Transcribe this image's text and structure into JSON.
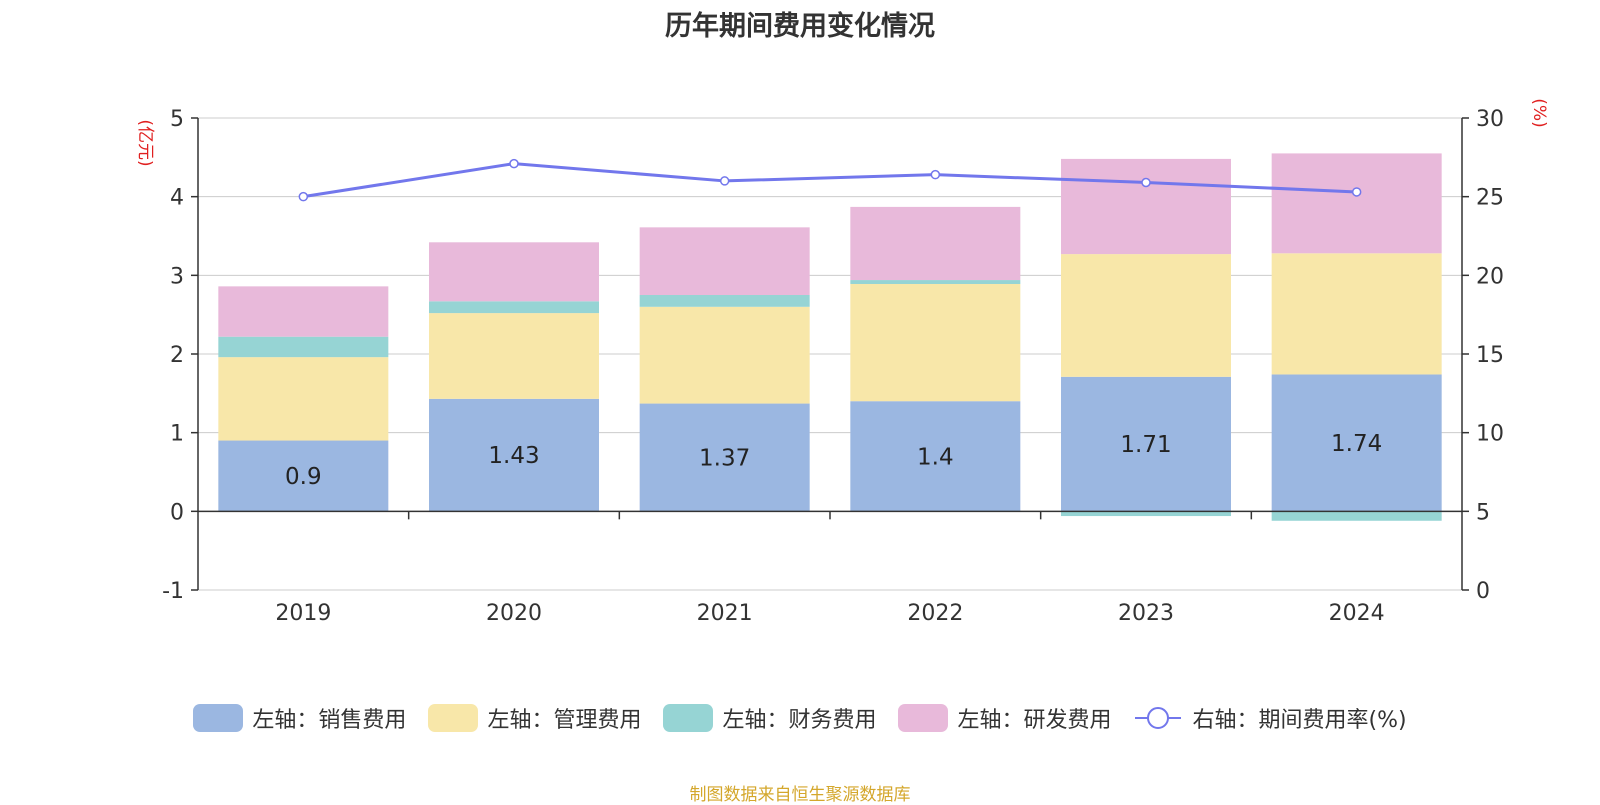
{
  "chart_data": {
    "type": "bar",
    "title": "历年期间费用变化情况",
    "categories": [
      "2019",
      "2020",
      "2021",
      "2022",
      "2023",
      "2024"
    ],
    "y_left": {
      "label": "(亿元)",
      "ylim": [
        -1,
        5
      ],
      "ticks": [
        -1,
        0,
        1,
        2,
        3,
        4,
        5
      ]
    },
    "y_right": {
      "label": "(%)",
      "ylim": [
        0,
        30
      ],
      "ticks": [
        0,
        5,
        10,
        15,
        20,
        25,
        30
      ]
    },
    "grid": true,
    "legend_position": "bottom",
    "series": [
      {
        "name": "左轴：销售费用",
        "axis": "left",
        "stack": "fees",
        "type": "bar",
        "color": "#9bb7e1",
        "values": [
          0.9,
          1.43,
          1.37,
          1.4,
          1.71,
          1.74
        ],
        "labels": [
          "0.9",
          "1.43",
          "1.37",
          "1.4",
          "1.71",
          "1.74"
        ]
      },
      {
        "name": "左轴：管理费用",
        "axis": "left",
        "stack": "fees",
        "type": "bar",
        "color": "#f8e7a9",
        "values": [
          1.06,
          1.09,
          1.23,
          1.49,
          1.56,
          1.54
        ]
      },
      {
        "name": "左轴：财务费用",
        "axis": "left",
        "stack": "fees",
        "type": "bar",
        "color": "#96d4d4",
        "values": [
          0.26,
          0.15,
          0.15,
          0.05,
          -0.06,
          -0.12
        ]
      },
      {
        "name": "左轴：研发费用",
        "axis": "left",
        "stack": "fees",
        "type": "bar",
        "color": "#e8b9da",
        "values": [
          0.64,
          0.75,
          0.86,
          0.93,
          1.21,
          1.27
        ]
      },
      {
        "name": "右轴：期间费用率(%)",
        "axis": "right",
        "type": "line",
        "color": "#7277ec",
        "values": [
          25.0,
          27.1,
          26.0,
          26.4,
          25.9,
          25.3
        ]
      }
    ]
  },
  "legend": {
    "sales": "左轴：销售费用",
    "admin": "左轴：管理费用",
    "finance": "左轴：财务费用",
    "rnd": "左轴：研发费用",
    "ratio": "右轴：期间费用率(%)"
  },
  "source_note": "制图数据来自恒生聚源数据库"
}
